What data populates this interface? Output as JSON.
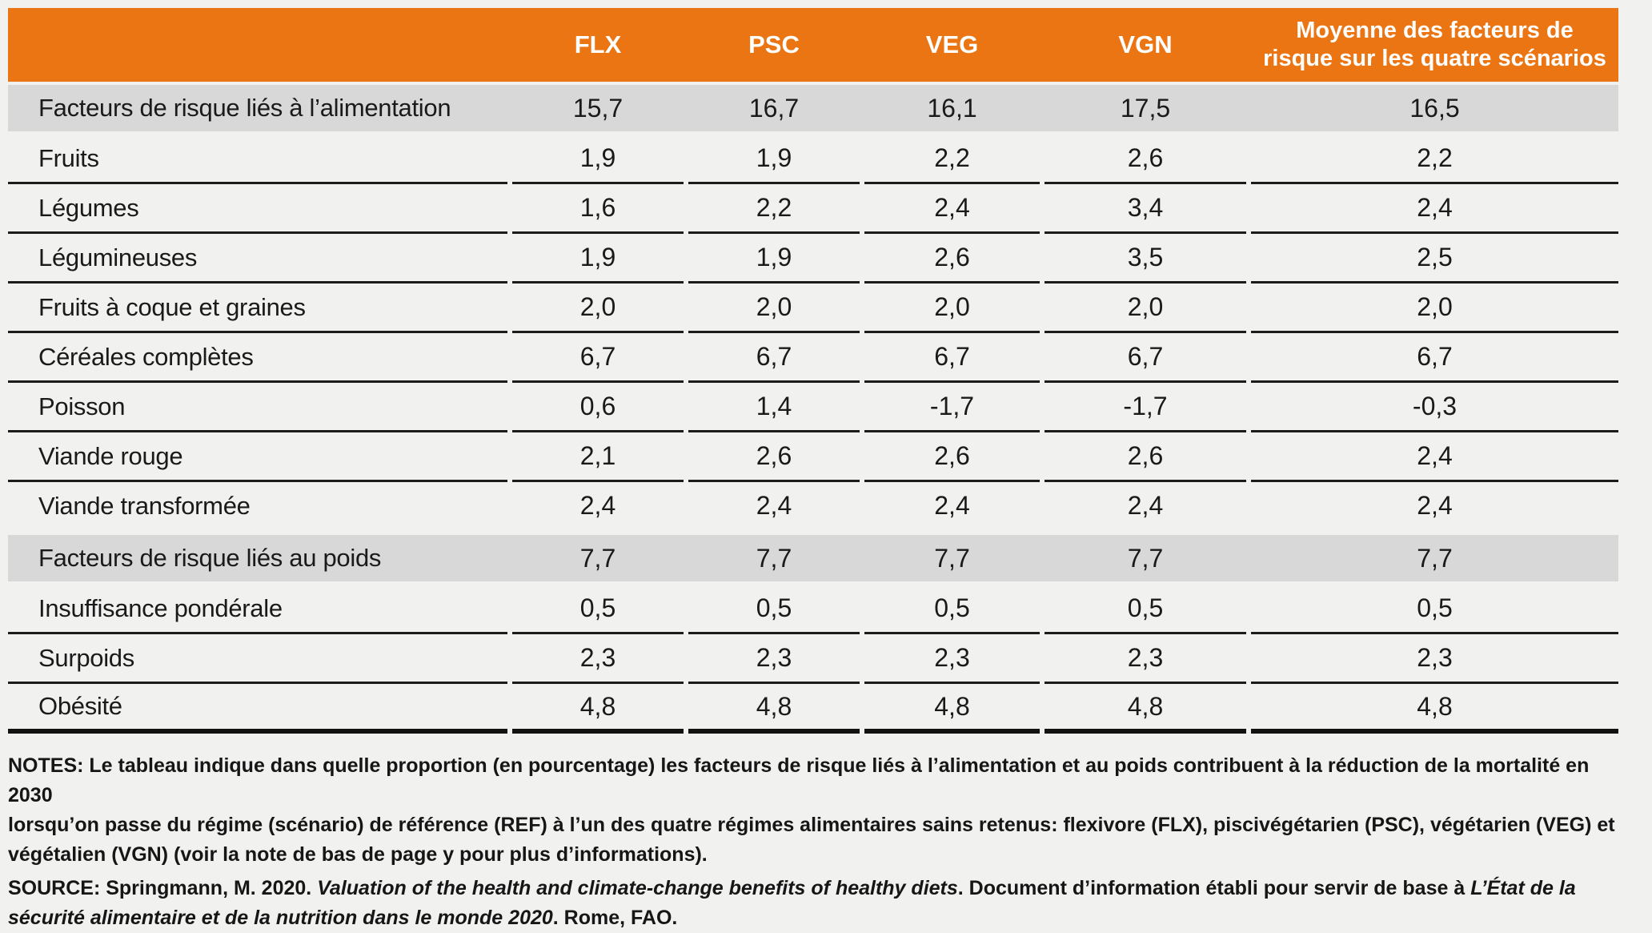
{
  "colors": {
    "header_orange": "#EC7513",
    "section_gray": "#D8D8D8",
    "rule_black": "#1C1C1C",
    "page_bg": "#F1F1F0",
    "header_text": "#FFFFFF"
  },
  "table": {
    "headers": [
      "",
      "FLX",
      "PSC",
      "VEG",
      "VGN",
      "Moyenne des facteurs de risque sur les quatre scénarios"
    ],
    "rows": [
      {
        "label": "Facteurs de risque liés à l’alimentation",
        "values": [
          "15,7",
          "16,7",
          "16,1",
          "17,5",
          "16,5"
        ],
        "section": true
      },
      {
        "label": "Fruits",
        "values": [
          "1,9",
          "1,9",
          "2,2",
          "2,6",
          "2,2"
        ]
      },
      {
        "label": "Légumes",
        "values": [
          "1,6",
          "2,2",
          "2,4",
          "3,4",
          "2,4"
        ]
      },
      {
        "label": "Légumineuses",
        "values": [
          "1,9",
          "1,9",
          "2,6",
          "3,5",
          "2,5"
        ]
      },
      {
        "label": "Fruits à coque et graines",
        "values": [
          "2,0",
          "2,0",
          "2,0",
          "2,0",
          "2,0"
        ]
      },
      {
        "label": "Céréales complètes",
        "values": [
          "6,7",
          "6,7",
          "6,7",
          "6,7",
          "6,7"
        ]
      },
      {
        "label": "Poisson",
        "values": [
          "0,6",
          "1,4",
          "-1,7",
          "-1,7",
          "-0,3"
        ]
      },
      {
        "label": "Viande rouge",
        "values": [
          "2,1",
          "2,6",
          "2,6",
          "2,6",
          "2,4"
        ]
      },
      {
        "label": "Viande transformée",
        "values": [
          "2,4",
          "2,4",
          "2,4",
          "2,4",
          "2,4"
        ]
      },
      {
        "label": "Facteurs de risque liés au poids",
        "values": [
          "7,7",
          "7,7",
          "7,7",
          "7,7",
          "7,7"
        ],
        "section": true
      },
      {
        "label": "Insuffisance pondérale",
        "values": [
          "0,5",
          "0,5",
          "0,5",
          "0,5",
          "0,5"
        ]
      },
      {
        "label": "Surpoids",
        "values": [
          "2,3",
          "2,3",
          "2,3",
          "2,3",
          "2,3"
        ]
      },
      {
        "label": "Obésité",
        "values": [
          "4,8",
          "4,8",
          "4,8",
          "4,8",
          "4,8"
        ]
      }
    ]
  },
  "notes": {
    "lines": [
      "NOTES: Le tableau indique dans quelle proportion (en pourcentage) les facteurs de risque liés à l’alimentation et au poids contribuent à la réduction de la mortalité en 2030",
      "lorsqu’on passe du régime (scénario) de référence (REF) à l’un des quatre régimes alimentaires sains retenus: flexivore (FLX), piscivégétarien (PSC), végétarien (VEG) et",
      "végétalien (VGN) (voir la note de bas de page y pour plus d’informations)."
    ]
  },
  "source": {
    "segments": [
      {
        "text": "SOURCE: Springmann, M. 2020. ",
        "italic": false
      },
      {
        "text": "Valuation of the health and climate-change benefits of healthy diets",
        "italic": true
      },
      {
        "text": ". Document d’information établi pour servir de base à ",
        "italic": false
      },
      {
        "text": "L’État de la sécurité alimentaire et de la nutrition dans le monde 2020",
        "italic": true
      },
      {
        "text": ". Rome, FAO.",
        "italic": false
      }
    ]
  }
}
